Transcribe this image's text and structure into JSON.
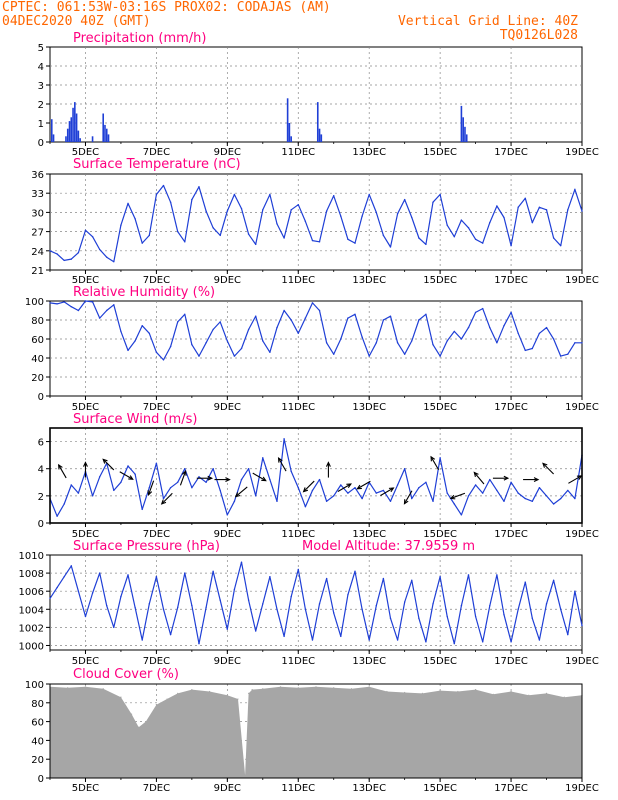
{
  "header": {
    "line1_left": "CPTEC:   061:53W-03:16S   PROX02: CODAJAS (AM)",
    "line2_left": "04DEC2020 40Z (GMT)",
    "line2_right": "Vertical Grid Line: 40Z",
    "line3_right": "TQ0126L028",
    "color": "#ff6600"
  },
  "colors": {
    "title": "#ff0080",
    "line": "#1f3fd6",
    "bar": "#1f3fd6",
    "cloud": "#a6a6a6",
    "grid": "#888888",
    "arrow": "#000000"
  },
  "chart_data": [
    {
      "type": "bar",
      "title": "Precipitation (mm/h)",
      "x_ticks": [
        "5DEC",
        "7DEC",
        "9DEC",
        "11DEC",
        "13DEC",
        "15DEC",
        "17DEC",
        "19DEC"
      ],
      "x_range": [
        4.0,
        19.0
      ],
      "ylim": [
        0,
        5
      ],
      "y_ticks": [
        0,
        1,
        2,
        3,
        4,
        5
      ],
      "x": [
        4.05,
        4.1,
        4.45,
        4.5,
        4.55,
        4.6,
        4.65,
        4.7,
        4.75,
        4.8,
        4.85,
        5.2,
        5.5,
        5.55,
        5.6,
        5.65,
        10.7,
        10.75,
        10.8,
        11.55,
        11.6,
        11.65,
        15.6,
        15.65,
        15.7,
        15.75
      ],
      "values": [
        1.2,
        0.4,
        0.3,
        0.7,
        1.1,
        1.3,
        1.8,
        2.1,
        1.5,
        0.6,
        0.2,
        0.3,
        1.5,
        0.9,
        0.7,
        0.4,
        2.3,
        1.0,
        0.3,
        2.1,
        0.7,
        0.4,
        1.9,
        1.3,
        0.8,
        0.4
      ]
    },
    {
      "type": "line",
      "title": "Surface Temperature (nC)",
      "x_ticks": [
        "5DEC",
        "7DEC",
        "9DEC",
        "11DEC",
        "13DEC",
        "15DEC",
        "17DEC",
        "19DEC"
      ],
      "x_range": [
        4.0,
        19.0
      ],
      "ylim": [
        21,
        36
      ],
      "y_ticks": [
        21,
        24,
        27,
        30,
        33,
        36
      ],
      "x": [
        4.0,
        4.2,
        4.4,
        4.6,
        4.8,
        5.0,
        5.2,
        5.4,
        5.6,
        5.8,
        6.0,
        6.2,
        6.4,
        6.6,
        6.8,
        7.0,
        7.2,
        7.4,
        7.6,
        7.8,
        8.0,
        8.2,
        8.4,
        8.6,
        8.8,
        9.0,
        9.2,
        9.4,
        9.6,
        9.8,
        10.0,
        10.2,
        10.4,
        10.6,
        10.8,
        11.0,
        11.2,
        11.4,
        11.6,
        11.8,
        12.0,
        12.2,
        12.4,
        12.6,
        12.8,
        13.0,
        13.2,
        13.4,
        13.6,
        13.8,
        14.0,
        14.2,
        14.4,
        14.6,
        14.8,
        15.0,
        15.2,
        15.4,
        15.6,
        15.8,
        16.0,
        16.2,
        16.4,
        16.6,
        16.8,
        17.0,
        17.2,
        17.4,
        17.6,
        17.8,
        18.0,
        18.2,
        18.4,
        18.6,
        18.8,
        19.0
      ],
      "values": [
        24.0,
        23.5,
        22.5,
        22.7,
        23.7,
        27.2,
        26.2,
        24.2,
        23.0,
        22.3,
        28.0,
        31.4,
        29.0,
        25.2,
        26.4,
        32.8,
        34.2,
        31.6,
        27.0,
        25.4,
        32.0,
        34.0,
        30.2,
        27.6,
        26.4,
        30.2,
        32.8,
        30.6,
        26.6,
        25.0,
        30.4,
        32.8,
        28.2,
        26.0,
        30.4,
        31.2,
        28.6,
        25.6,
        25.4,
        30.2,
        32.6,
        29.4,
        25.8,
        25.2,
        29.4,
        32.8,
        30.0,
        26.4,
        24.6,
        29.8,
        32.0,
        29.2,
        26.0,
        25.0,
        31.6,
        32.8,
        28.0,
        26.2,
        28.8,
        27.6,
        25.8,
        25.2,
        28.4,
        31.0,
        29.2,
        24.8,
        30.8,
        32.2,
        28.4,
        30.8,
        30.4,
        26.0,
        24.8,
        30.4,
        33.6,
        30.2
      ]
    },
    {
      "type": "line",
      "title": "Relative Humidity (%)",
      "x_ticks": [
        "5DEC",
        "7DEC",
        "9DEC",
        "11DEC",
        "13DEC",
        "15DEC",
        "17DEC",
        "19DEC"
      ],
      "x_range": [
        4.0,
        19.0
      ],
      "ylim": [
        0,
        100
      ],
      "y_ticks": [
        0,
        20,
        40,
        60,
        80,
        100
      ],
      "x": [
        4.0,
        4.2,
        4.4,
        4.6,
        4.8,
        5.0,
        5.2,
        5.4,
        5.6,
        5.8,
        6.0,
        6.2,
        6.4,
        6.6,
        6.8,
        7.0,
        7.2,
        7.4,
        7.6,
        7.8,
        8.0,
        8.2,
        8.4,
        8.6,
        8.8,
        9.0,
        9.2,
        9.4,
        9.6,
        9.8,
        10.0,
        10.2,
        10.4,
        10.6,
        10.8,
        11.0,
        11.2,
        11.4,
        11.6,
        11.8,
        12.0,
        12.2,
        12.4,
        12.6,
        12.8,
        13.0,
        13.2,
        13.4,
        13.6,
        13.8,
        14.0,
        14.2,
        14.4,
        14.6,
        14.8,
        15.0,
        15.2,
        15.4,
        15.6,
        15.8,
        16.0,
        16.2,
        16.4,
        16.6,
        16.8,
        17.0,
        17.2,
        17.4,
        17.6,
        17.8,
        18.0,
        18.2,
        18.4,
        18.6,
        18.8,
        19.0
      ],
      "values": [
        98,
        97,
        99,
        94,
        90,
        100,
        99,
        82,
        90,
        96,
        68,
        48,
        58,
        74,
        66,
        46,
        38,
        52,
        78,
        86,
        54,
        42,
        56,
        70,
        78,
        58,
        42,
        50,
        70,
        84,
        58,
        46,
        72,
        90,
        80,
        66,
        82,
        98,
        90,
        56,
        44,
        60,
        82,
        86,
        62,
        42,
        56,
        80,
        84,
        56,
        44,
        58,
        80,
        86,
        54,
        42,
        58,
        68,
        60,
        72,
        88,
        92,
        72,
        56,
        74,
        88,
        66,
        48,
        50,
        66,
        72,
        60,
        42,
        44,
        56,
        56
      ]
    },
    {
      "type": "line",
      "title": "Surface Wind (m/s)",
      "x_ticks": [
        "5DEC",
        "7DEC",
        "9DEC",
        "11DEC",
        "13DEC",
        "15DEC",
        "17DEC",
        "19DEC"
      ],
      "x_range": [
        4.0,
        19.0
      ],
      "ylim": [
        0,
        7
      ],
      "y_ticks": [
        0,
        2,
        4,
        6
      ],
      "x": [
        4.0,
        4.2,
        4.4,
        4.6,
        4.8,
        5.0,
        5.2,
        5.4,
        5.6,
        5.8,
        6.0,
        6.2,
        6.4,
        6.6,
        6.8,
        7.0,
        7.2,
        7.4,
        7.6,
        7.8,
        8.0,
        8.2,
        8.4,
        8.6,
        8.8,
        9.0,
        9.2,
        9.4,
        9.6,
        9.8,
        10.0,
        10.2,
        10.4,
        10.6,
        10.8,
        11.0,
        11.2,
        11.4,
        11.6,
        11.8,
        12.0,
        12.2,
        12.4,
        12.6,
        12.8,
        13.0,
        13.2,
        13.4,
        13.6,
        13.8,
        14.0,
        14.2,
        14.4,
        14.6,
        14.8,
        15.0,
        15.2,
        15.4,
        15.6,
        15.8,
        16.0,
        16.2,
        16.4,
        16.6,
        16.8,
        17.0,
        17.2,
        17.4,
        17.6,
        17.8,
        18.0,
        18.2,
        18.4,
        18.6,
        18.8,
        19.0
      ],
      "values": [
        1.8,
        0.5,
        1.4,
        2.8,
        2.2,
        3.8,
        2.0,
        3.4,
        4.4,
        2.4,
        3.0,
        4.2,
        3.6,
        1.0,
        2.6,
        4.4,
        1.8,
        2.6,
        3.0,
        4.0,
        2.6,
        3.4,
        3.0,
        4.0,
        2.4,
        0.6,
        1.6,
        3.2,
        4.0,
        2.0,
        4.8,
        3.2,
        1.6,
        6.2,
        3.8,
        2.6,
        1.2,
        2.4,
        3.2,
        1.6,
        2.0,
        2.8,
        2.2,
        2.6,
        1.8,
        3.0,
        2.2,
        2.4,
        1.6,
        2.8,
        4.0,
        1.8,
        2.6,
        3.0,
        1.6,
        4.8,
        2.2,
        1.4,
        0.6,
        2.0,
        2.8,
        2.2,
        3.2,
        2.4,
        1.6,
        3.0,
        2.2,
        1.8,
        1.6,
        2.6,
        2.0,
        1.4,
        1.8,
        2.4,
        1.8,
        5.0
      ],
      "arrows": [
        {
          "x": 4.35,
          "v": 3.8,
          "dir": 330
        },
        {
          "x": 5.0,
          "v": 3.9,
          "dir": 0
        },
        {
          "x": 5.65,
          "v": 4.3,
          "dir": 315
        },
        {
          "x": 6.15,
          "v": 3.5,
          "dir": 120
        },
        {
          "x": 6.85,
          "v": 2.6,
          "dir": 200
        },
        {
          "x": 7.3,
          "v": 1.8,
          "dir": 225
        },
        {
          "x": 7.75,
          "v": 3.3,
          "dir": 20
        },
        {
          "x": 8.35,
          "v": 3.3,
          "dir": 90
        },
        {
          "x": 8.85,
          "v": 3.2,
          "dir": 90
        },
        {
          "x": 9.4,
          "v": 2.3,
          "dir": 230
        },
        {
          "x": 9.9,
          "v": 3.4,
          "dir": 120
        },
        {
          "x": 10.55,
          "v": 4.3,
          "dir": 330
        },
        {
          "x": 11.3,
          "v": 2.7,
          "dir": 225
        },
        {
          "x": 11.85,
          "v": 3.9,
          "dir": 0
        },
        {
          "x": 12.3,
          "v": 2.6,
          "dir": 60
        },
        {
          "x": 12.85,
          "v": 2.8,
          "dir": 240
        },
        {
          "x": 13.5,
          "v": 2.3,
          "dir": 60
        },
        {
          "x": 14.1,
          "v": 1.9,
          "dir": 210
        },
        {
          "x": 14.85,
          "v": 4.4,
          "dir": 330
        },
        {
          "x": 15.5,
          "v": 2.0,
          "dir": 250
        },
        {
          "x": 16.1,
          "v": 3.3,
          "dir": 320
        },
        {
          "x": 16.7,
          "v": 3.3,
          "dir": 90
        },
        {
          "x": 17.55,
          "v": 3.2,
          "dir": 90
        },
        {
          "x": 18.05,
          "v": 4.0,
          "dir": 315
        },
        {
          "x": 18.8,
          "v": 3.2,
          "dir": 60
        }
      ]
    },
    {
      "type": "line",
      "title": "Surface Pressure (hPa)",
      "annotation": "Model Altitude: 37.9559 m",
      "x_ticks": [
        "5DEC",
        "7DEC",
        "9DEC",
        "11DEC",
        "13DEC",
        "15DEC",
        "17DEC",
        "19DEC"
      ],
      "x_range": [
        4.0,
        19.0
      ],
      "ylim": [
        999.5,
        1010
      ],
      "y_ticks": [
        1000,
        1002,
        1004,
        1006,
        1008,
        1010
      ],
      "x": [
        4.0,
        4.2,
        4.4,
        4.6,
        4.8,
        5.0,
        5.2,
        5.4,
        5.6,
        5.8,
        6.0,
        6.2,
        6.4,
        6.6,
        6.8,
        7.0,
        7.2,
        7.4,
        7.6,
        7.8,
        8.0,
        8.2,
        8.4,
        8.6,
        8.8,
        9.0,
        9.2,
        9.4,
        9.6,
        9.8,
        10.0,
        10.2,
        10.4,
        10.6,
        10.8,
        11.0,
        11.2,
        11.4,
        11.6,
        11.8,
        12.0,
        12.2,
        12.4,
        12.6,
        12.8,
        13.0,
        13.2,
        13.4,
        13.6,
        13.8,
        14.0,
        14.2,
        14.4,
        14.6,
        14.8,
        15.0,
        15.2,
        15.4,
        15.6,
        15.8,
        16.0,
        16.2,
        16.4,
        16.6,
        16.8,
        17.0,
        17.2,
        17.4,
        17.6,
        17.8,
        18.0,
        18.2,
        18.4,
        18.6,
        18.8,
        19.0
      ],
      "values": [
        1005.2,
        1006.4,
        1007.6,
        1008.8,
        1006.0,
        1003.2,
        1005.8,
        1008.0,
        1004.4,
        1002.0,
        1005.4,
        1007.8,
        1004.2,
        1000.6,
        1004.6,
        1007.6,
        1004.0,
        1001.2,
        1004.2,
        1008.0,
        1004.4,
        1000.2,
        1004.2,
        1008.2,
        1005.0,
        1001.8,
        1006.2,
        1009.2,
        1005.0,
        1001.6,
        1004.6,
        1007.6,
        1004.0,
        1001.0,
        1005.4,
        1008.4,
        1004.0,
        1000.6,
        1004.6,
        1007.4,
        1003.6,
        1001.0,
        1005.6,
        1008.2,
        1004.0,
        1000.6,
        1004.4,
        1007.4,
        1003.0,
        1000.6,
        1004.8,
        1007.2,
        1003.0,
        1000.4,
        1004.6,
        1007.6,
        1003.2,
        1000.2,
        1004.4,
        1007.8,
        1003.2,
        1000.4,
        1004.4,
        1007.8,
        1003.4,
        1000.4,
        1004.0,
        1007.0,
        1003.0,
        1000.6,
        1004.6,
        1007.2,
        1004.0,
        1001.2,
        1006.0,
        1002.2
      ]
    },
    {
      "type": "area",
      "title": "Cloud Cover (%)",
      "x_ticks": [
        "5DEC",
        "7DEC",
        "9DEC",
        "11DEC",
        "13DEC",
        "15DEC",
        "17DEC",
        "19DEC"
      ],
      "x_range": [
        4.0,
        19.0
      ],
      "ylim": [
        0,
        100
      ],
      "y_ticks": [
        0,
        20,
        40,
        60,
        80,
        100
      ],
      "x": [
        4.0,
        4.5,
        5.0,
        5.5,
        6.0,
        6.3,
        6.5,
        6.7,
        7.0,
        7.3,
        7.6,
        8.0,
        8.5,
        9.0,
        9.3,
        9.5,
        9.6,
        9.7,
        10.0,
        10.5,
        11.0,
        11.5,
        12.0,
        12.5,
        13.0,
        13.5,
        14.0,
        14.5,
        15.0,
        15.5,
        16.0,
        16.5,
        17.0,
        17.5,
        18.0,
        18.5,
        19.0
      ],
      "values": [
        97,
        96,
        97,
        95,
        86,
        68,
        54,
        60,
        78,
        84,
        90,
        94,
        92,
        88,
        84,
        3,
        90,
        94,
        95,
        97,
        96,
        97,
        96,
        95,
        97,
        92,
        91,
        90,
        93,
        92,
        94,
        89,
        92,
        88,
        90,
        86,
        88
      ]
    }
  ]
}
